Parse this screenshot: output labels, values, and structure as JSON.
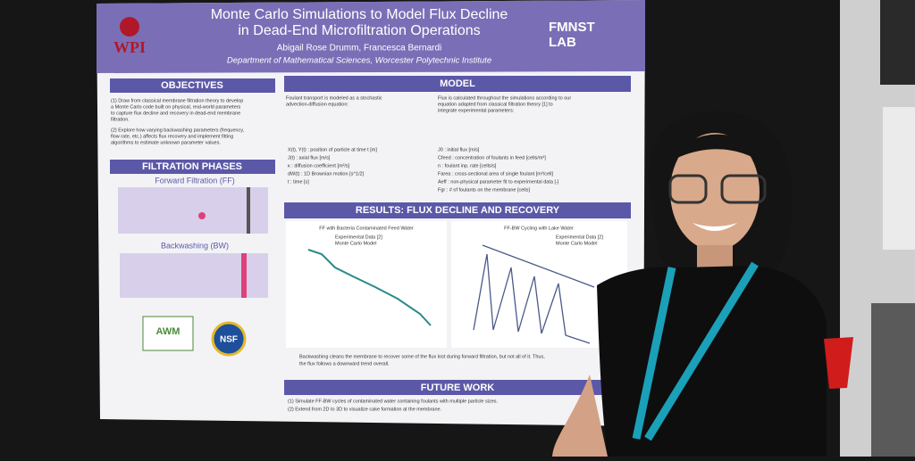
{
  "poster": {
    "logo_left": "WPI",
    "title": [
      "Monte Carlo Simulations to Model Flux Decline",
      "in Dead-End Microfiltration Operations"
    ],
    "authors": "Abigail Rose Drumm, Francesca Bernardi",
    "affiliation": "Department of Mathematical Sciences, Worcester Polytechnic Institute",
    "logo_right": [
      "FMNST",
      "LAB"
    ],
    "objectives": {
      "heading": "OBJECTIVES",
      "items": [
        "(1) Draw from classical membrane filtration theory to develop",
        "a Monte Carlo code built on physical, real-world parameters",
        "to capture flux decline and recovery in dead-end membrane",
        "filtration.",
        "(2) Explore how varying backwashing parameters (frequency,",
        "flow rate, etc.) affects flux recovery and implement fitting",
        "algorithms to estimate unknown parameter values."
      ]
    },
    "phases": {
      "heading": "FILTRATION PHASES",
      "forward": "Forward Filtration (FF)",
      "backward": "Backwashing (BW)"
    },
    "model": {
      "heading": "MODEL",
      "left": [
        "Foulant transport is modeled as a stochastic",
        "advection-diffusion equation:"
      ],
      "right": [
        "Flux is calculated throughout the simulations according to our",
        "equation adapted from classical filtration theory [1] to",
        "integrate experimental parameters:"
      ],
      "definitions": [
        "X(t), Y(t) : position of particle at time t [m]",
        "J(t) : axial flux [m/s]",
        "κ : diffusion coefficient [m²/s]",
        "dW(t) : 1D Brownian motion [s^1/2]",
        "t : time [s]"
      ],
      "parameters": [
        "J0 : initial flux [m/s]",
        "Cfeed : concentration of foulants in feed [cells/m³]",
        "n : foulant inp. rate [cells/s]",
        "Farea : cross-sectional area of single foulant [m²/cell]",
        "Aeff : non-physical parameter fit to experimental data [-]",
        "Fgr : # of foulants on the membrane [cells]"
      ]
    },
    "results": {
      "heading": "RESULTS: FLUX DECLINE AND RECOVERY",
      "plot1_title": "FF with Bacteria Contaminated Feed Water",
      "plot2_title": "FF-BW Cycling with Lake Water",
      "legend": [
        "Experimental Data [2]",
        "Monte Carlo Model"
      ],
      "caption": [
        "Backwashing cleans the membrane to recover some of the flux lost during forward filtration, but not all of it. Thus,",
        "the flux follows a downward trend overall."
      ]
    },
    "future": {
      "heading": "FUTURE WORK",
      "items": [
        "(1) Simulate FF-BW cycles of contaminated water containing foulants with multiple particle sizes.",
        "(2) Extend from 2D to 3D to visualize cake formation at the membrane."
      ]
    },
    "sponsors": [
      "AWM",
      "NSF"
    ]
  }
}
